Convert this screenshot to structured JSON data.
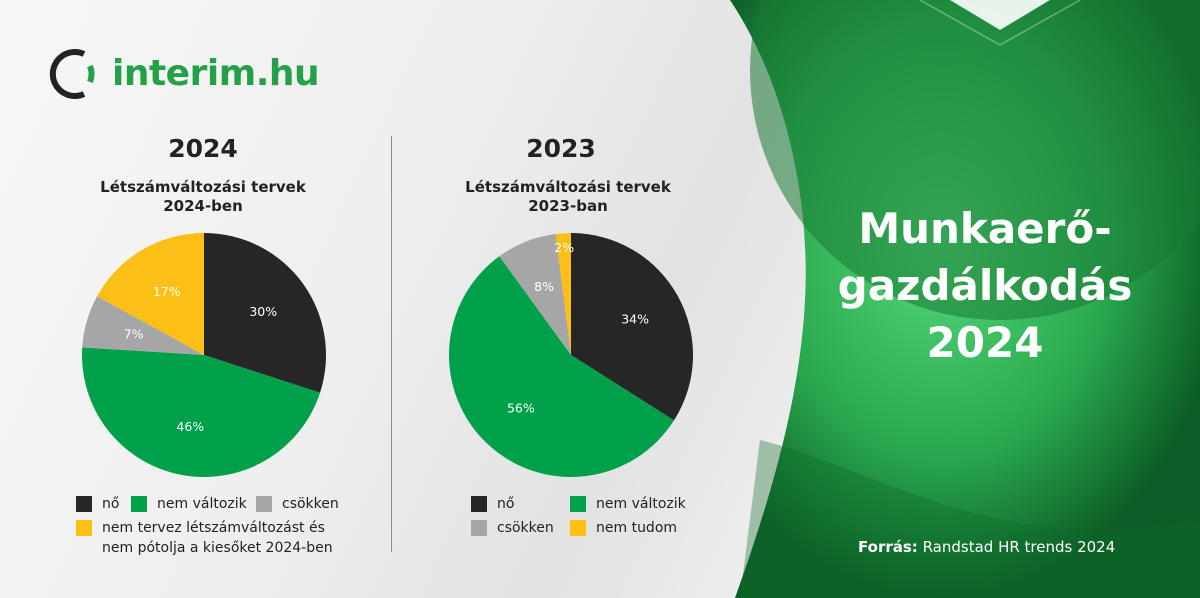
{
  "brand": {
    "name": "interim.hu"
  },
  "colors": {
    "no": "#262626",
    "nem_valtozik": "#00a14a",
    "csokken": "#a6a6a6",
    "yellow": "#fcbf15"
  },
  "hero": {
    "line1": "Munkaerő-",
    "line2": "gazdálkodás",
    "line3": "2024"
  },
  "source": {
    "label": "Forrás:",
    "text": "Randstad HR trends 2024"
  },
  "charts": {
    "c2024": {
      "year": "2024",
      "subtitle_line1": "Létszámváltozási tervek",
      "subtitle_line2": "2024-ben"
    },
    "c2023": {
      "year": "2023",
      "subtitle_line1": "Létszámváltozási tervek",
      "subtitle_line2": "2023-ban"
    }
  },
  "chart_data": [
    {
      "type": "pie",
      "title": "Létszámváltozási tervek 2024-ben",
      "categories": [
        "nő",
        "nem változik",
        "csökken",
        "nem tervez létszámváltozást és nem pótolja a kiesőket 2024-ben"
      ],
      "values": [
        30,
        46,
        7,
        17
      ],
      "labels": [
        "30%",
        "46%",
        "7%",
        "17%"
      ],
      "colors": [
        "#262626",
        "#00a14a",
        "#a6a6a6",
        "#fcbf15"
      ],
      "legend": "bottom"
    },
    {
      "type": "pie",
      "title": "Létszámváltozási tervek 2023-ban",
      "categories": [
        "nő",
        "nem változik",
        "csökken",
        "nem tudom"
      ],
      "values": [
        34,
        56,
        8,
        2
      ],
      "labels": [
        "34%",
        "56%",
        "8%",
        "2%"
      ],
      "colors": [
        "#262626",
        "#00a14a",
        "#a6a6a6",
        "#fcbf15"
      ],
      "legend": "bottom"
    }
  ]
}
